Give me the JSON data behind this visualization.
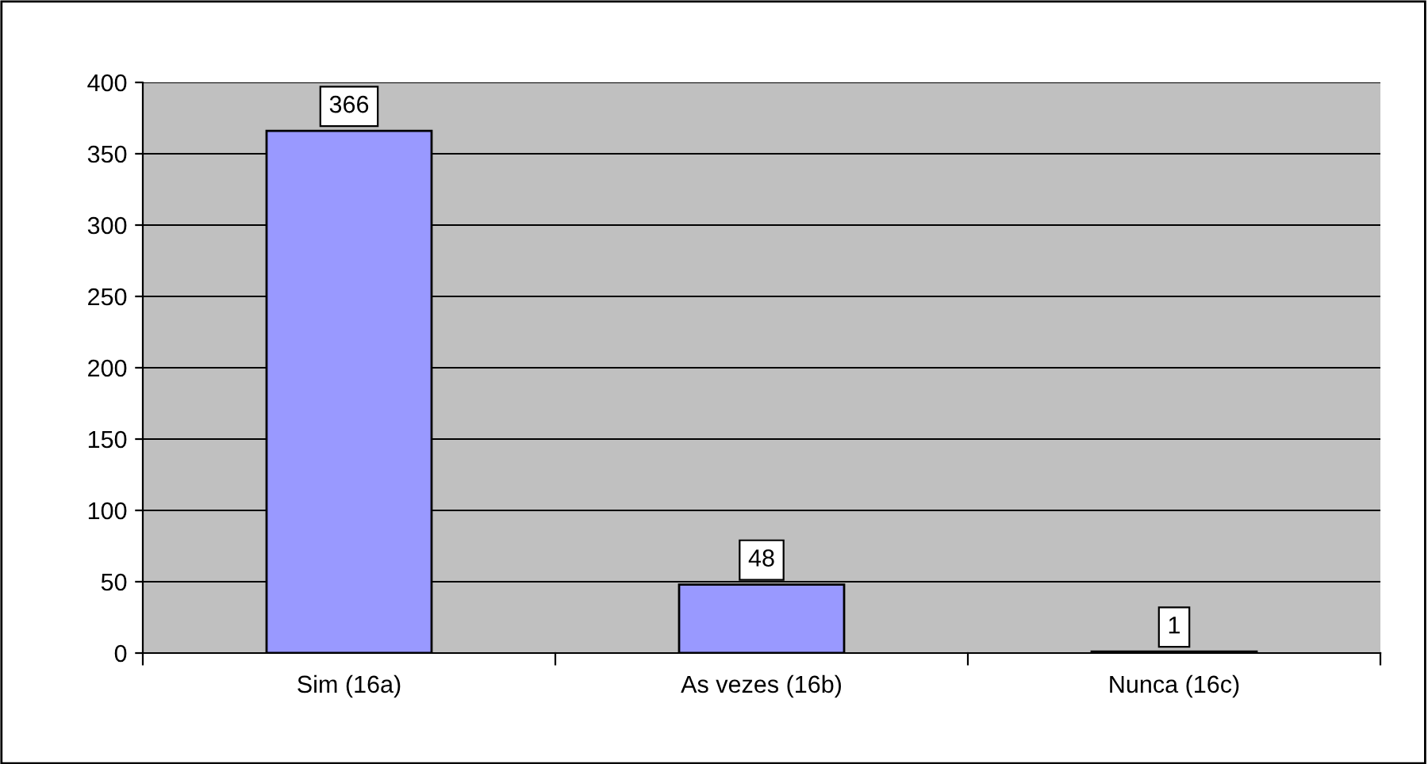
{
  "chart_data": {
    "type": "bar",
    "categories": [
      "Sim (16a)",
      "As vezes (16b)",
      "Nunca (16c)"
    ],
    "values": [
      366,
      48,
      1
    ],
    "color": "#9999ff",
    "ylim": [
      0,
      400
    ],
    "yticks": [
      0,
      50,
      100,
      150,
      200,
      250,
      300,
      350,
      400
    ],
    "grid": "y",
    "data_labels": true
  }
}
